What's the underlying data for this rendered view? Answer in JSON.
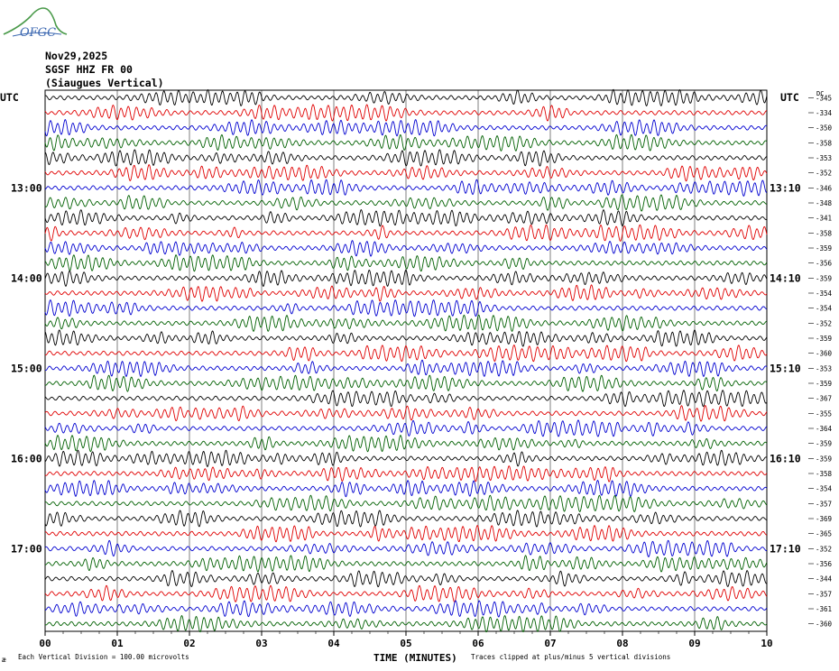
{
  "logo_text": "OFGC",
  "header": {
    "date": "Nov29,2025",
    "station": "SGSF HHZ FR 00",
    "site": "(Siaugues Vertical)"
  },
  "utc_left": "UTC",
  "utc_right": "UTC",
  "dc_label": "DC",
  "footer": {
    "scale": "Each Vertical Division =  100.00 microvolts",
    "clip": "Traces clipped at plus/minus 5 vertical divisions",
    "corner": "æ"
  },
  "colors": {
    "black": "#000000",
    "red": "#e00000",
    "blue": "#0000d0",
    "green": "#006000"
  },
  "chart_data": {
    "type": "line",
    "title": "SGSF HHZ FR 00 (Siaugues Vertical)",
    "xlabel": "TIME (MINUTES)",
    "x_ticks": [
      "00",
      "01",
      "02",
      "03",
      "04",
      "05",
      "06",
      "07",
      "08",
      "09",
      "10"
    ],
    "xlim": [
      0,
      10
    ],
    "left_time_labels": [
      {
        "label": "13:00",
        "row": 6
      },
      {
        "label": "14:00",
        "row": 12
      },
      {
        "label": "15:00",
        "row": 18
      },
      {
        "label": "16:00",
        "row": 24
      },
      {
        "label": "17:00",
        "row": 30
      }
    ],
    "right_time_labels": [
      {
        "label": "13:10",
        "row": 6
      },
      {
        "label": "14:10",
        "row": 12
      },
      {
        "label": "15:10",
        "row": 18
      },
      {
        "label": "16:10",
        "row": 24
      },
      {
        "label": "17:10",
        "row": 30
      }
    ],
    "trace_colors": [
      "black",
      "red",
      "blue",
      "green"
    ],
    "dc_offsets": [
      -345,
      -334,
      -350,
      -358,
      -353,
      -352,
      -346,
      -348,
      -341,
      -358,
      -359,
      -356,
      -359,
      -354,
      -354,
      -352,
      -359,
      -360,
      -353,
      -359,
      -367,
      -355,
      -364,
      -359,
      -359,
      -358,
      -354,
      -357,
      -369,
      -365,
      -352,
      -356,
      -344,
      -357,
      -361,
      -360
    ],
    "scale": "100.00 microvolts per vertical division",
    "clip": "plus/minus 5 vertical divisions"
  }
}
